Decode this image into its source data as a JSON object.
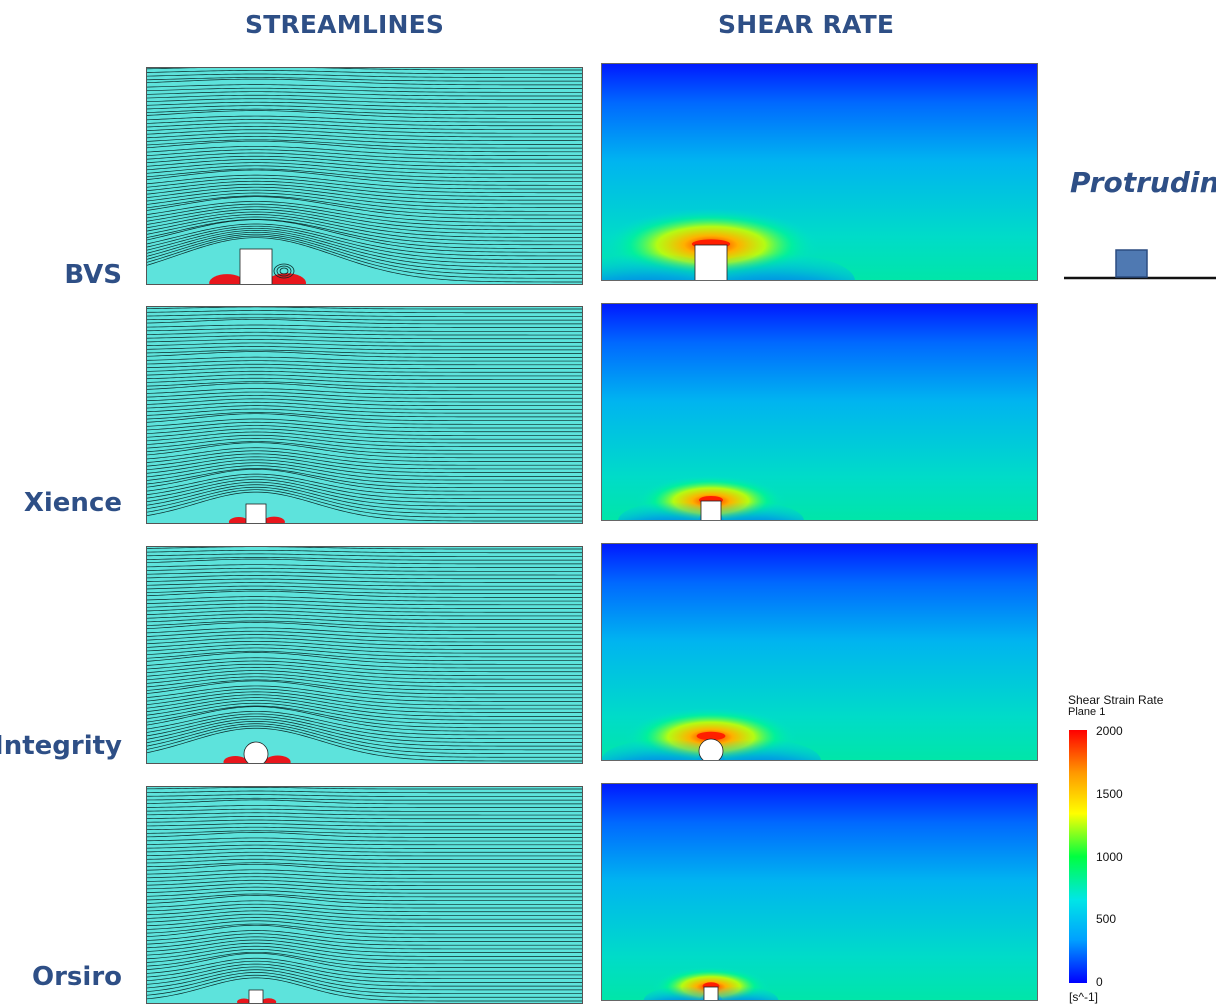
{
  "columns": {
    "streamlines": "STREAMLINES",
    "shear_rate": "SHEAR RATE"
  },
  "rows": [
    {
      "label": "BVS",
      "strut_shape": "rectangle"
    },
    {
      "label": "Xience",
      "strut_shape": "rectangle"
    },
    {
      "label": "Integrity",
      "strut_shape": "circle"
    },
    {
      "label": "Orsiro",
      "strut_shape": "rectangle"
    }
  ],
  "configuration": {
    "label": "Protruding",
    "strut_color": "#4f79b2"
  },
  "colorbar": {
    "title_line1": "Shear Strain Rate",
    "title_line2": "Plane 1",
    "ticks": [
      "2000",
      "1500",
      "1000",
      "500",
      "0"
    ],
    "unit": "[s^-1]",
    "min": 0,
    "max": 2000,
    "colors": [
      "#0000ff",
      "#00a0ff",
      "#00e6e6",
      "#00ff40",
      "#ffff00",
      "#ff9900",
      "#ff0000"
    ]
  },
  "colors": {
    "title": "#2e4f86",
    "flow_fill": "#5de3dc",
    "streamline": "#0a2a2a",
    "recirculation": "#e8161c"
  }
}
